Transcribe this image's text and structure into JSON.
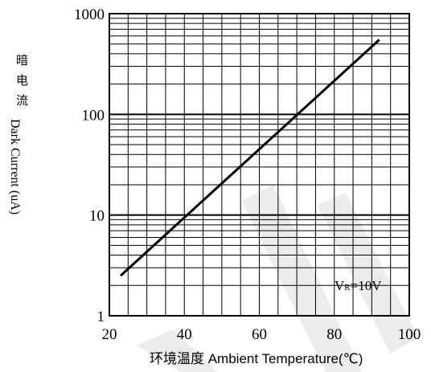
{
  "chart_data": {
    "type": "line",
    "xlabel": "环境温度 Ambient Temperature(℃)",
    "ylabel_cn": "暗电流",
    "ylabel_en": "Dark Current (uA)",
    "xlim": [
      20,
      100
    ],
    "ylim": [
      1,
      1000
    ],
    "y_scale": "log",
    "grid": true,
    "x_ticks": [
      "20",
      "40",
      "60",
      "80",
      "100"
    ],
    "y_ticks": [
      "1",
      "10",
      "100",
      "1000"
    ],
    "series": [
      {
        "x": [
          23,
          92
        ],
        "y": [
          2.5,
          550
        ]
      }
    ],
    "annotation": {
      "main": "V",
      "sub": "R",
      "rest": "=10V"
    }
  }
}
